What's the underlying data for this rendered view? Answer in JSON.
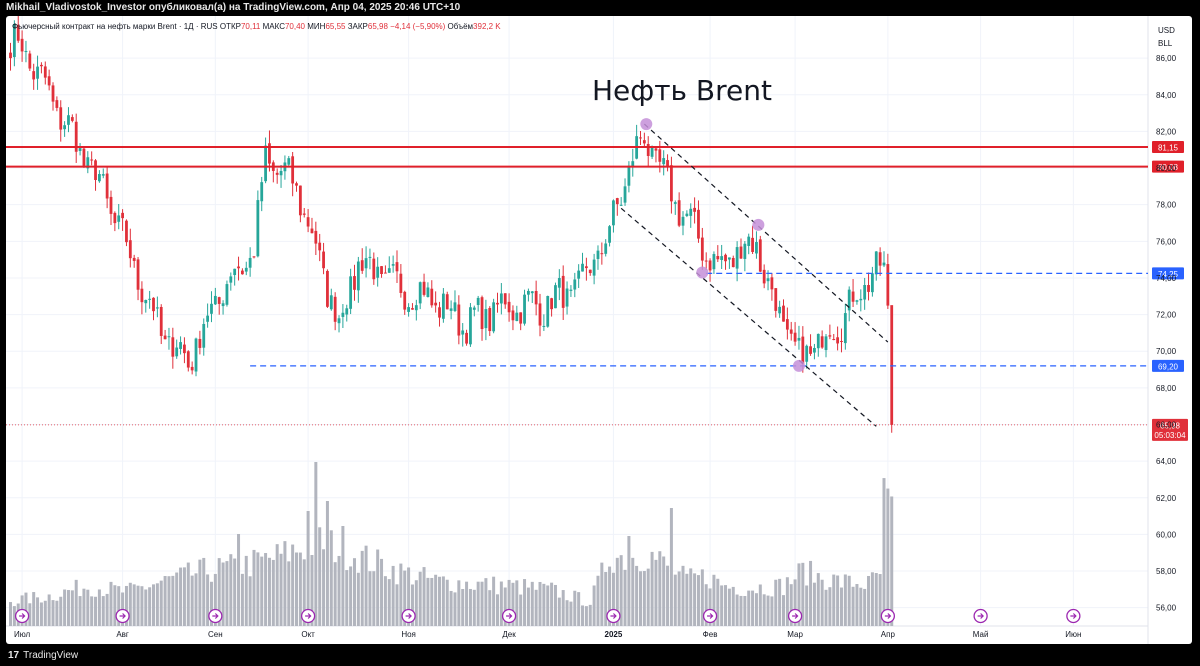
{
  "header": {
    "publisher_line": "Mikhail_Vladivostok_Investor опубликовал(а) на TradingView.com, Апр 04, 2025 20:46 UTC+10"
  },
  "legend": {
    "instrument": "Фьючерсный контракт на нефть марки Brent · 1Д · RUS",
    "open_label": "ОТКР",
    "open_value": "70,11",
    "high_label": "МАКС",
    "high_value": "70,40",
    "low_label": "МИН",
    "low_value": "65,55",
    "close_label": "ЗАКР",
    "close_value": "65,98",
    "change": "−4,14 (−5,90%)",
    "volume_label": "Объём",
    "volume_value": "392,2 K"
  },
  "currency": {
    "code": "USD",
    "unit": "BLL"
  },
  "footer": {
    "logo_glyph": "17",
    "brand": "TradingView"
  },
  "colors": {
    "up": "#26a69a",
    "down": "#e0303a",
    "volume": "#b2b5be",
    "resistance": "#e0202a",
    "support": "#2962ff",
    "channel": "#131722",
    "pivot": "#c48fd8",
    "price_badge": "#e0303a",
    "event_icon": "#9c27b0"
  },
  "chart_data": {
    "type": "candlestick",
    "title": "Нефть Brent",
    "y_ticks": [
      "86,00",
      "84,00",
      "82,00",
      "80,00",
      "78,00",
      "76,00",
      "74,00",
      "72,00",
      "70,00",
      "68,00",
      "66,00",
      "64,00",
      "62,00",
      "60,00",
      "58,00",
      "56,00"
    ],
    "ylim": [
      55,
      88.3
    ],
    "x_labels": [
      "Июл",
      "Авг",
      "Сен",
      "Окт",
      "Ноя",
      "Дек",
      "2025",
      "Фев",
      "Мар",
      "Апр",
      "Май",
      "Июн"
    ],
    "horizontal_levels": [
      {
        "value": 81.15,
        "label": "81,15",
        "style": "resistance"
      },
      {
        "value": 80.08,
        "label": "80,08",
        "style": "resistance"
      },
      {
        "value": 74.25,
        "label": "74,25",
        "style": "support"
      },
      {
        "value": 69.2,
        "label": "69,20",
        "style": "support"
      }
    ],
    "last_price": {
      "value": 65.98,
      "label": "65,98",
      "countdown": "05:03:04"
    },
    "anchors": [
      2.5,
      86.8,
      24.0,
      78.8,
      39.0,
      71.0,
      46.0,
      69.5,
      55.0,
      73.5,
      63.0,
      75.5,
      66.0,
      80.5,
      74.0,
      79.0,
      85.0,
      71.5,
      90.0,
      75.0,
      100.0,
      73.5,
      108.0,
      73.0,
      118.0,
      71.5,
      128.0,
      72.5,
      138.0,
      72.5,
      147.0,
      73.5,
      155.0,
      76.5,
      160.0,
      80.0,
      164.0,
      81.8,
      170.0,
      79.0,
      177.0,
      76.5,
      183.0,
      74.5,
      188.0,
      75.5,
      193.0,
      76.0,
      196.0,
      73.5,
      200.0,
      71.5,
      204.0,
      69.5,
      209.0,
      70.5,
      214.0,
      71.5,
      219.0,
      73.0,
      223.0,
      74.5,
      226.0,
      74.2,
      228.0,
      70.0,
      229.0,
      66.0
    ],
    "candle_count": 229,
    "volume_profile": [
      0,
      2.5,
      10,
      3.0,
      20,
      4.0,
      30,
      3.4,
      40,
      4.5,
      50,
      5.5,
      60,
      6.0,
      70,
      7.0,
      80,
      8.5,
      90,
      7.0,
      100,
      5.5,
      110,
      4.5,
      120,
      4.2,
      130,
      4.0,
      140,
      3.6,
      150,
      2.4,
      155,
      7.0,
      160,
      6.8,
      165,
      7.2,
      170,
      6.0,
      175,
      4.6,
      180,
      5.0,
      185,
      4.0,
      190,
      3.8,
      200,
      4.0,
      205,
      5.5,
      210,
      4.8,
      215,
      4.4,
      222,
      4.2,
      225,
      5.2,
      226,
      12.5,
      228,
      11.2
    ],
    "volume_spikes": [
      [
        79,
        16.4
      ],
      [
        82,
        12.5
      ],
      [
        77,
        11.5
      ],
      [
        86,
        10.0
      ],
      [
        59,
        9.2
      ],
      [
        171,
        11.8
      ],
      [
        160,
        9.0
      ]
    ],
    "volume_ylim": [
      0,
      17
    ],
    "channel_lines": [
      {
        "from": [
          164,
          82.4
        ],
        "to": [
          227,
          70.5
        ]
      },
      {
        "from": [
          158,
          77.8
        ],
        "to": [
          224,
          65.9
        ]
      }
    ],
    "dotted_levels": [
      {
        "from": [
          62,
          69.2
        ],
        "to": [
          229,
          69.2
        ],
        "value": 69.2
      },
      {
        "from": [
          180,
          74.25
        ],
        "to": [
          229,
          74.25
        ],
        "value": 74.25
      }
    ],
    "pivots": [
      [
        164.5,
        82.4
      ],
      [
        193.5,
        76.9
      ],
      [
        179.0,
        74.3
      ],
      [
        204.0,
        69.2
      ]
    ],
    "event_markers_x": [
      3,
      29,
      53,
      77,
      103,
      129,
      156,
      181,
      203,
      227,
      251,
      275
    ]
  }
}
